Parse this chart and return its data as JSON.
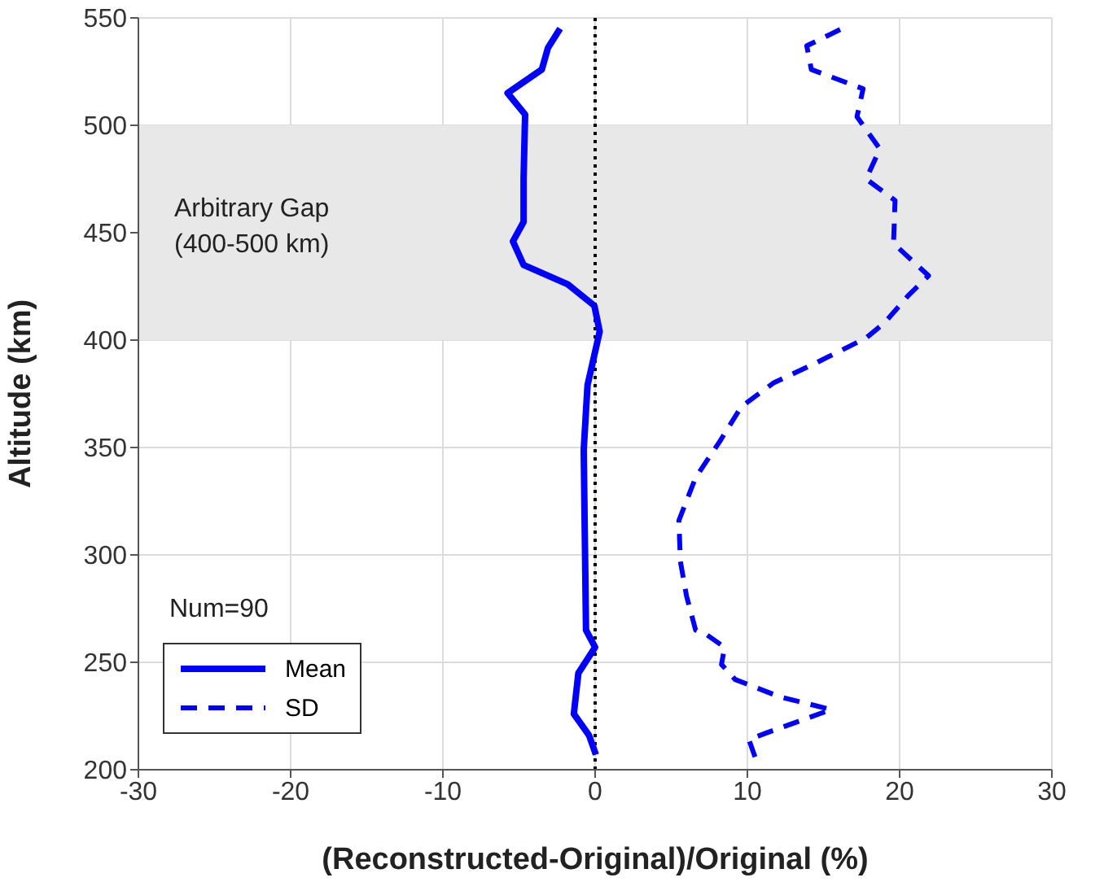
{
  "chart_data": {
    "type": "line",
    "xlabel": "(Reconstructed-Original)/Original (%)",
    "ylabel": "Altitude (km)",
    "xlim": [
      -30,
      30
    ],
    "xticks": [
      -30,
      -20,
      -10,
      0,
      10,
      20,
      30
    ],
    "ylim": [
      200,
      550
    ],
    "yticks": [
      200,
      250,
      300,
      350,
      400,
      450,
      500,
      550
    ],
    "grid": true,
    "legend": "bottom left",
    "annotations": [
      "Num=90"
    ],
    "bands": [
      {
        "axis": "y",
        "from": 400,
        "to": 500,
        "label": "Arbitrary Gap\n(400-500 km)",
        "color": "#e8e8e8"
      }
    ],
    "ref_lines": [
      {
        "axis": "x",
        "value": 0,
        "color": "#000000",
        "line_style": "dotted"
      }
    ],
    "series": [
      {
        "name": "Mean",
        "color": "#0000ff",
        "line_style": "solid",
        "x": [
          0.05,
          -0.4,
          -1.4,
          -1.1,
          0,
          -0.6,
          -0.75,
          -0.5,
          0.3,
          -0.05,
          -1.8,
          -4.7,
          -5.4,
          -4.7,
          -4.7,
          -4.6,
          -5.75,
          -3.5,
          -3.1,
          -2.3
        ],
        "values": [
          207,
          216,
          226,
          245,
          257,
          265,
          349,
          379,
          404,
          416,
          426,
          435,
          446,
          455,
          475,
          505,
          515,
          526,
          536,
          545
        ]
      },
      {
        "name": "SD",
        "color": "#0000ff",
        "line_style": "dashed",
        "x": [
          10.5,
          10.1,
          11.2,
          15.5,
          12.1,
          9.2,
          8.3,
          8.5,
          7.3,
          6.6,
          6.0,
          5.6,
          5.5,
          6.6,
          8.2,
          9.6,
          11.7,
          14.4,
          17.8,
          19.0,
          20.6,
          21.9,
          19.6,
          19.7,
          17.8,
          18.7,
          17.2,
          17.6,
          14.2,
          13.9,
          16.5
        ],
        "values": [
          206,
          214,
          217,
          228,
          234,
          242,
          249,
          257,
          263,
          265,
          281,
          297,
          316,
          336,
          353,
          369,
          380,
          389,
          401,
          408,
          421,
          430,
          445,
          465,
          475,
          489,
          504,
          517,
          526,
          537,
          546
        ]
      }
    ]
  }
}
